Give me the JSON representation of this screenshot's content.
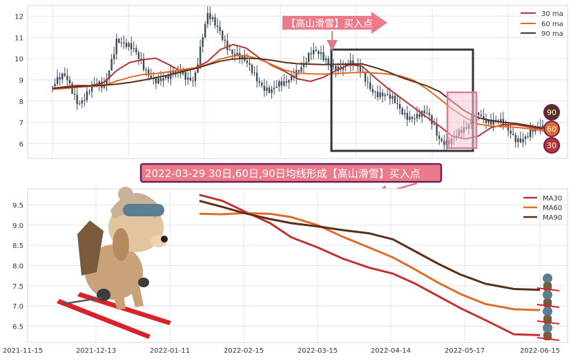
{
  "chart_data": [
    {
      "type": "candlestick+line",
      "title": "",
      "xlabel": "",
      "ylabel": "",
      "ylim": [
        5.3,
        12.5
      ],
      "yticks": [
        6,
        7,
        8,
        9,
        10,
        11,
        12
      ],
      "grid": true,
      "legend_position": "top-right",
      "series": [
        {
          "name": "30 ma",
          "color": "#b8312f",
          "values": [
            8.6,
            8.68,
            8.74,
            8.72,
            8.88,
            9.45,
            9.82,
            9.95,
            10.02,
            9.72,
            9.4,
            9.55,
            9.85,
            10.42,
            10.66,
            10.5,
            10.05,
            9.68,
            9.4,
            9.05,
            8.93,
            9.12,
            9.45,
            9.72,
            9.65,
            9.1,
            8.6,
            8.15,
            7.7,
            7.25,
            6.82,
            6.35,
            6.22,
            6.35,
            6.75,
            6.9,
            6.88,
            6.78,
            6.68
          ]
        },
        {
          "name": "60 ma",
          "color": "#e06b24",
          "values": [
            8.55,
            8.6,
            8.66,
            8.7,
            8.74,
            8.95,
            9.12,
            9.25,
            9.3,
            9.38,
            9.48,
            9.56,
            9.72,
            9.98,
            10.12,
            10.15,
            9.98,
            9.72,
            9.46,
            9.32,
            9.28,
            9.27,
            9.3,
            9.33,
            9.35,
            9.32,
            9.28,
            9.18,
            8.98,
            8.58,
            8.12,
            7.62,
            7.22,
            6.92,
            6.82,
            6.8,
            6.76,
            6.7,
            6.6
          ]
        },
        {
          "name": "90 ma",
          "color": "#5a2e18",
          "values": [
            8.6,
            8.64,
            8.68,
            8.72,
            8.75,
            8.8,
            8.88,
            8.98,
            9.1,
            9.22,
            9.38,
            9.52,
            9.7,
            9.88,
            9.98,
            10.02,
            10.0,
            9.92,
            9.82,
            9.76,
            9.74,
            9.72,
            9.73,
            9.74,
            9.75,
            9.58,
            9.38,
            9.12,
            8.92,
            8.72,
            8.45,
            7.98,
            7.52,
            7.22,
            7.08,
            7.0,
            6.94,
            6.84,
            6.72
          ]
        }
      ],
      "close_series": [
        8.7,
        9.0,
        8.1,
        8.6,
        8.5,
        11.2,
        10.4,
        9.6,
        9.2,
        8.9,
        9.4,
        9.2,
        11.8,
        11.4,
        10.3,
        9.6,
        9.1,
        8.5,
        8.6,
        9.7,
        10.2,
        9.9,
        9.8,
        9.6,
        9.3,
        8.6,
        8.0,
        7.6,
        7.4,
        7.2,
        6.3,
        6.3,
        6.4,
        7.7,
        7.0,
        6.7,
        6.4,
        6.4,
        6.6
      ],
      "end_labels": [
        "90",
        "60",
        "30"
      ],
      "annotations": {
        "arrow_label": "【高山滑雪】买入点"
      }
    },
    {
      "type": "line",
      "title": "2022-03-29 30日,60日,90日均线形成【高山滑雪】买入点",
      "xlabel": "",
      "ylabel": "",
      "ylim": [
        6.1,
        9.9
      ],
      "yticks": [
        6.5,
        7.0,
        7.5,
        8.0,
        8.5,
        9.0,
        9.5
      ],
      "x_tick_labels": [
        "2021-11-15",
        "2021-12-13",
        "2022-01-11",
        "2022-02-15",
        "2022-03-15",
        "2022-04-14",
        "2022-05-17",
        "2022-06-15"
      ],
      "grid": true,
      "legend_position": "top-right",
      "series": [
        {
          "name": "MA30",
          "color": "#c0332f",
          "x": [
            "2022-01-25",
            "2022-02-05",
            "2022-02-15",
            "2022-02-25",
            "2022-03-05",
            "2022-03-15",
            "2022-03-25",
            "2022-04-05",
            "2022-04-15",
            "2022-04-25",
            "2022-05-05",
            "2022-05-15",
            "2022-05-25",
            "2022-06-05",
            "2022-06-15"
          ],
          "values": [
            9.75,
            9.6,
            9.35,
            9.05,
            8.7,
            8.45,
            8.18,
            7.95,
            7.8,
            7.55,
            7.25,
            6.95,
            6.65,
            6.3,
            6.28
          ]
        },
        {
          "name": "MA60",
          "color": "#e06b24",
          "x": [
            "2022-01-25",
            "2022-02-05",
            "2022-02-15",
            "2022-02-25",
            "2022-03-05",
            "2022-03-15",
            "2022-03-25",
            "2022-04-05",
            "2022-04-15",
            "2022-04-25",
            "2022-05-05",
            "2022-05-15",
            "2022-05-25",
            "2022-06-05",
            "2022-06-15"
          ],
          "values": [
            9.28,
            9.27,
            9.3,
            9.28,
            9.2,
            9.0,
            8.72,
            8.45,
            8.2,
            7.9,
            7.58,
            7.3,
            7.05,
            6.92,
            6.9
          ]
        },
        {
          "name": "MA90",
          "color": "#5a2e18",
          "x": [
            "2022-01-25",
            "2022-02-05",
            "2022-02-15",
            "2022-02-25",
            "2022-03-05",
            "2022-03-15",
            "2022-03-25",
            "2022-04-05",
            "2022-04-15",
            "2022-04-25",
            "2022-05-05",
            "2022-05-15",
            "2022-05-25",
            "2022-06-05",
            "2022-06-15"
          ],
          "values": [
            9.6,
            9.45,
            9.3,
            9.15,
            9.05,
            8.97,
            8.88,
            8.8,
            8.65,
            8.35,
            8.05,
            7.78,
            7.55,
            7.42,
            7.4
          ]
        }
      ]
    }
  ]
}
